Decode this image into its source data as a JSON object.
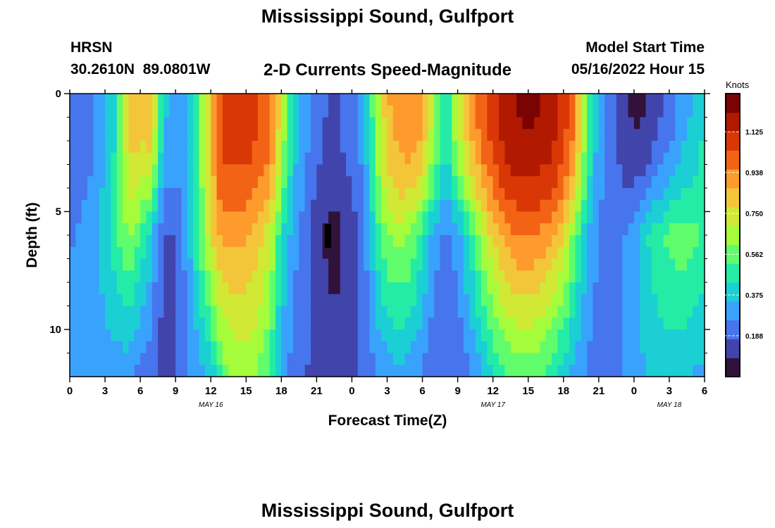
{
  "header": {
    "title": "Mississippi Sound, Gulfport",
    "station": "HRSN",
    "coords": "30.2610N  89.0801W",
    "subtitle": "2-D Currents Speed-Magnitude",
    "model_start_label": "Model Start Time",
    "model_start_value": "05/16/2022 Hour 15"
  },
  "footer": {
    "title": "Mississippi Sound, Gulfport"
  },
  "chart_data": {
    "type": "heatmap",
    "title": "2-D Currents Speed-Magnitude",
    "xlabel": "Forecast Time(Z)",
    "ylabel": "Depth (ft)",
    "x_tick_labels": [
      "0",
      "3",
      "6",
      "9",
      "12",
      "15",
      "18",
      "21",
      "0",
      "3",
      "6",
      "9",
      "12",
      "15",
      "18",
      "21",
      "0",
      "3",
      "6"
    ],
    "x_hours": [
      0,
      54
    ],
    "date_labels": [
      {
        "label": "MAY 16",
        "hour": 12
      },
      {
        "label": "MAY 17",
        "hour": 36
      },
      {
        "label": "MAY 18",
        "hour": 51
      }
    ],
    "y_tick_labels": [
      "0",
      "5",
      "10"
    ],
    "y_ticks": [
      0,
      5,
      10
    ],
    "ylim": [
      12,
      0
    ],
    "colorbar": {
      "unit": "Knots",
      "ticks": [
        "0.188",
        "0.375",
        "0.562",
        "0.750",
        "0.938",
        "1.125"
      ],
      "tick_values": [
        0.188,
        0.375,
        0.562,
        0.75,
        0.938,
        1.125
      ],
      "range": [
        0,
        1.3
      ],
      "colors": [
        "#30123b",
        "#4145ab",
        "#4675ed",
        "#39a2fc",
        "#1bcfd4",
        "#24eca6",
        "#61fc6c",
        "#a4fc3b",
        "#d1e834",
        "#f3c63a",
        "#fe9b2d",
        "#f36315",
        "#d93806",
        "#b11901",
        "#7a0403"
      ]
    },
    "profiles": {
      "hours": [
        0,
        2,
        4,
        5,
        5.5,
        6,
        7,
        7.5,
        8,
        8.5,
        9,
        10,
        11,
        12,
        12.5,
        13,
        14,
        15,
        16,
        17,
        17.5,
        18,
        19,
        20,
        21,
        22,
        22.5,
        23,
        24,
        25,
        26,
        27,
        28,
        29,
        30,
        31,
        32,
        33,
        34,
        35,
        36,
        37,
        38,
        39,
        40,
        41,
        42,
        43,
        44,
        45,
        46,
        47,
        48,
        49,
        50,
        51,
        52,
        53,
        54
      ],
      "surface": [
        0.2,
        0.25,
        0.45,
        0.8,
        0.85,
        0.82,
        0.85,
        0.6,
        0.35,
        0.35,
        0.3,
        0.3,
        0.55,
        0.8,
        1.0,
        1.08,
        1.1,
        1.1,
        1.05,
        1.0,
        0.9,
        0.7,
        0.4,
        0.3,
        0.2,
        0.17,
        0.15,
        0.18,
        0.22,
        0.3,
        0.6,
        0.85,
        0.92,
        0.95,
        0.9,
        0.65,
        0.45,
        0.7,
        0.88,
        1.0,
        1.1,
        1.18,
        1.22,
        1.24,
        1.22,
        1.18,
        1.1,
        0.95,
        0.55,
        0.3,
        0.22,
        0.12,
        0.07,
        0.08,
        0.15,
        0.2,
        0.3,
        0.35,
        0.45
      ],
      "mid": [
        0.25,
        0.3,
        0.5,
        0.62,
        0.6,
        0.5,
        0.38,
        0.22,
        0.18,
        0.15,
        0.17,
        0.3,
        0.55,
        0.75,
        0.85,
        0.9,
        0.9,
        0.88,
        0.82,
        0.72,
        0.6,
        0.45,
        0.3,
        0.2,
        0.12,
        0.06,
        0.05,
        0.07,
        0.13,
        0.22,
        0.45,
        0.6,
        0.65,
        0.6,
        0.45,
        0.3,
        0.22,
        0.3,
        0.45,
        0.65,
        0.8,
        0.9,
        0.95,
        0.96,
        0.94,
        0.88,
        0.78,
        0.55,
        0.35,
        0.25,
        0.22,
        0.25,
        0.32,
        0.42,
        0.5,
        0.55,
        0.58,
        0.55,
        0.5
      ],
      "bottom": [
        0.3,
        0.3,
        0.3,
        0.28,
        0.25,
        0.22,
        0.2,
        0.16,
        0.15,
        0.15,
        0.18,
        0.25,
        0.3,
        0.38,
        0.45,
        0.55,
        0.62,
        0.64,
        0.6,
        0.5,
        0.4,
        0.3,
        0.22,
        0.18,
        0.15,
        0.13,
        0.12,
        0.13,
        0.15,
        0.18,
        0.25,
        0.3,
        0.32,
        0.3,
        0.25,
        0.2,
        0.18,
        0.2,
        0.25,
        0.32,
        0.42,
        0.5,
        0.55,
        0.55,
        0.52,
        0.45,
        0.38,
        0.3,
        0.25,
        0.22,
        0.22,
        0.25,
        0.3,
        0.35,
        0.38,
        0.38,
        0.36,
        0.34,
        0.32
      ]
    }
  }
}
